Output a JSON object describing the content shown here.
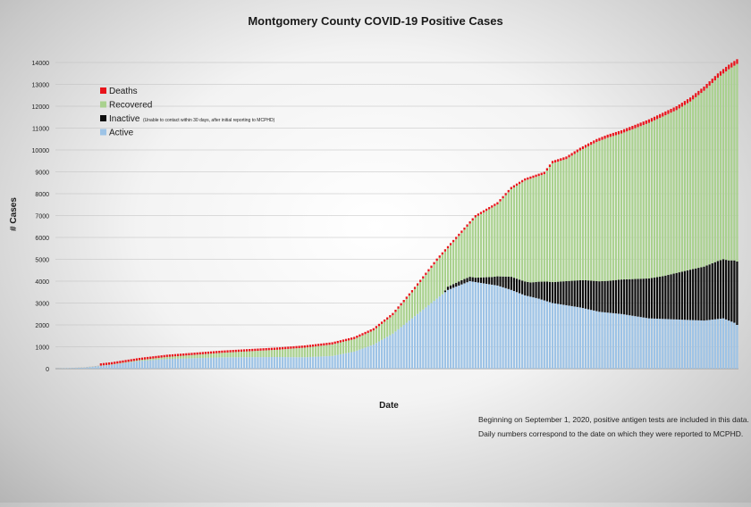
{
  "chart_data": {
    "type": "bar",
    "stacked": true,
    "title": "Montgomery County COVID-19 Positive Cases",
    "xlabel": "Date",
    "ylabel": "# Cases",
    "ylim": [
      0,
      14000
    ],
    "yticks": [
      0,
      1000,
      2000,
      3000,
      4000,
      5000,
      6000,
      7000,
      8000,
      9000,
      10000,
      11000,
      12000,
      13000,
      14000
    ],
    "grid": true,
    "legend_position": "top-left",
    "num_bars": 248,
    "note_lines": [
      "Beginning on September 1, 2020, positive antigen tests are included in this data.",
      "Daily numbers correspond to the date on which they were reported to MCPHD."
    ],
    "colors": {
      "Deaths": "#e8141b",
      "Recovered": "#a9d18e",
      "Inactive": "#0d0d0d",
      "Active": "#9dc3e6"
    },
    "series": [
      {
        "name": "Deaths",
        "note": ""
      },
      {
        "name": "Recovered",
        "note": ""
      },
      {
        "name": "Inactive",
        "note": "(Unable to contact within 30 days, after initial reporting to MCPHD)"
      },
      {
        "name": "Active",
        "note": ""
      }
    ],
    "series_keyframes": {
      "total": [
        [
          0,
          5
        ],
        [
          10,
          60
        ],
        [
          20,
          200
        ],
        [
          30,
          400
        ],
        [
          40,
          550
        ],
        [
          60,
          750
        ],
        [
          80,
          900
        ],
        [
          90,
          1000
        ],
        [
          100,
          1150
        ],
        [
          108,
          1400
        ],
        [
          115,
          1800
        ],
        [
          122,
          2500
        ],
        [
          130,
          3700
        ],
        [
          138,
          5000
        ],
        [
          145,
          6000
        ],
        [
          152,
          7000
        ],
        [
          160,
          7600
        ],
        [
          165,
          8300
        ],
        [
          170,
          8700
        ],
        [
          177,
          9000
        ],
        [
          180,
          9500
        ],
        [
          185,
          9700
        ],
        [
          190,
          10100
        ],
        [
          196,
          10500
        ],
        [
          200,
          10700
        ],
        [
          205,
          10900
        ],
        [
          210,
          11150
        ],
        [
          215,
          11400
        ],
        [
          220,
          11700
        ],
        [
          225,
          12000
        ],
        [
          230,
          12400
        ],
        [
          235,
          12900
        ],
        [
          240,
          13500
        ],
        [
          244,
          13900
        ],
        [
          247,
          14150
        ]
      ],
      "active": [
        [
          0,
          5
        ],
        [
          10,
          50
        ],
        [
          20,
          180
        ],
        [
          30,
          350
        ],
        [
          40,
          440
        ],
        [
          60,
          520
        ],
        [
          80,
          530
        ],
        [
          90,
          520
        ],
        [
          100,
          580
        ],
        [
          108,
          780
        ],
        [
          115,
          1100
        ],
        [
          122,
          1600
        ],
        [
          128,
          2200
        ],
        [
          133,
          2700
        ],
        [
          138,
          3200
        ],
        [
          142,
          3600
        ],
        [
          147,
          3850
        ],
        [
          150,
          4000
        ],
        [
          155,
          3900
        ],
        [
          160,
          3800
        ],
        [
          165,
          3600
        ],
        [
          170,
          3350
        ],
        [
          175,
          3200
        ],
        [
          180,
          3000
        ],
        [
          190,
          2800
        ],
        [
          197,
          2600
        ],
        [
          205,
          2500
        ],
        [
          215,
          2300
        ],
        [
          225,
          2250
        ],
        [
          235,
          2200
        ],
        [
          242,
          2300
        ],
        [
          246,
          2100
        ],
        [
          247,
          2000
        ]
      ],
      "inactive": [
        [
          0,
          0
        ],
        [
          140,
          0
        ],
        [
          142,
          150
        ],
        [
          148,
          200
        ],
        [
          152,
          200
        ],
        [
          158,
          350
        ],
        [
          165,
          600
        ],
        [
          172,
          650
        ],
        [
          178,
          900
        ],
        [
          185,
          1100
        ],
        [
          192,
          1300
        ],
        [
          200,
          1450
        ],
        [
          210,
          1700
        ],
        [
          220,
          1950
        ],
        [
          230,
          2300
        ],
        [
          236,
          2500
        ],
        [
          240,
          2650
        ],
        [
          244,
          2750
        ],
        [
          247,
          2900
        ]
      ],
      "deaths": [
        [
          0,
          0
        ],
        [
          20,
          5
        ],
        [
          40,
          15
        ],
        [
          60,
          25
        ],
        [
          80,
          35
        ],
        [
          100,
          45
        ],
        [
          120,
          55
        ],
        [
          140,
          70
        ],
        [
          160,
          90
        ],
        [
          180,
          110
        ],
        [
          200,
          140
        ],
        [
          220,
          170
        ],
        [
          240,
          200
        ],
        [
          247,
          215
        ]
      ]
    }
  }
}
